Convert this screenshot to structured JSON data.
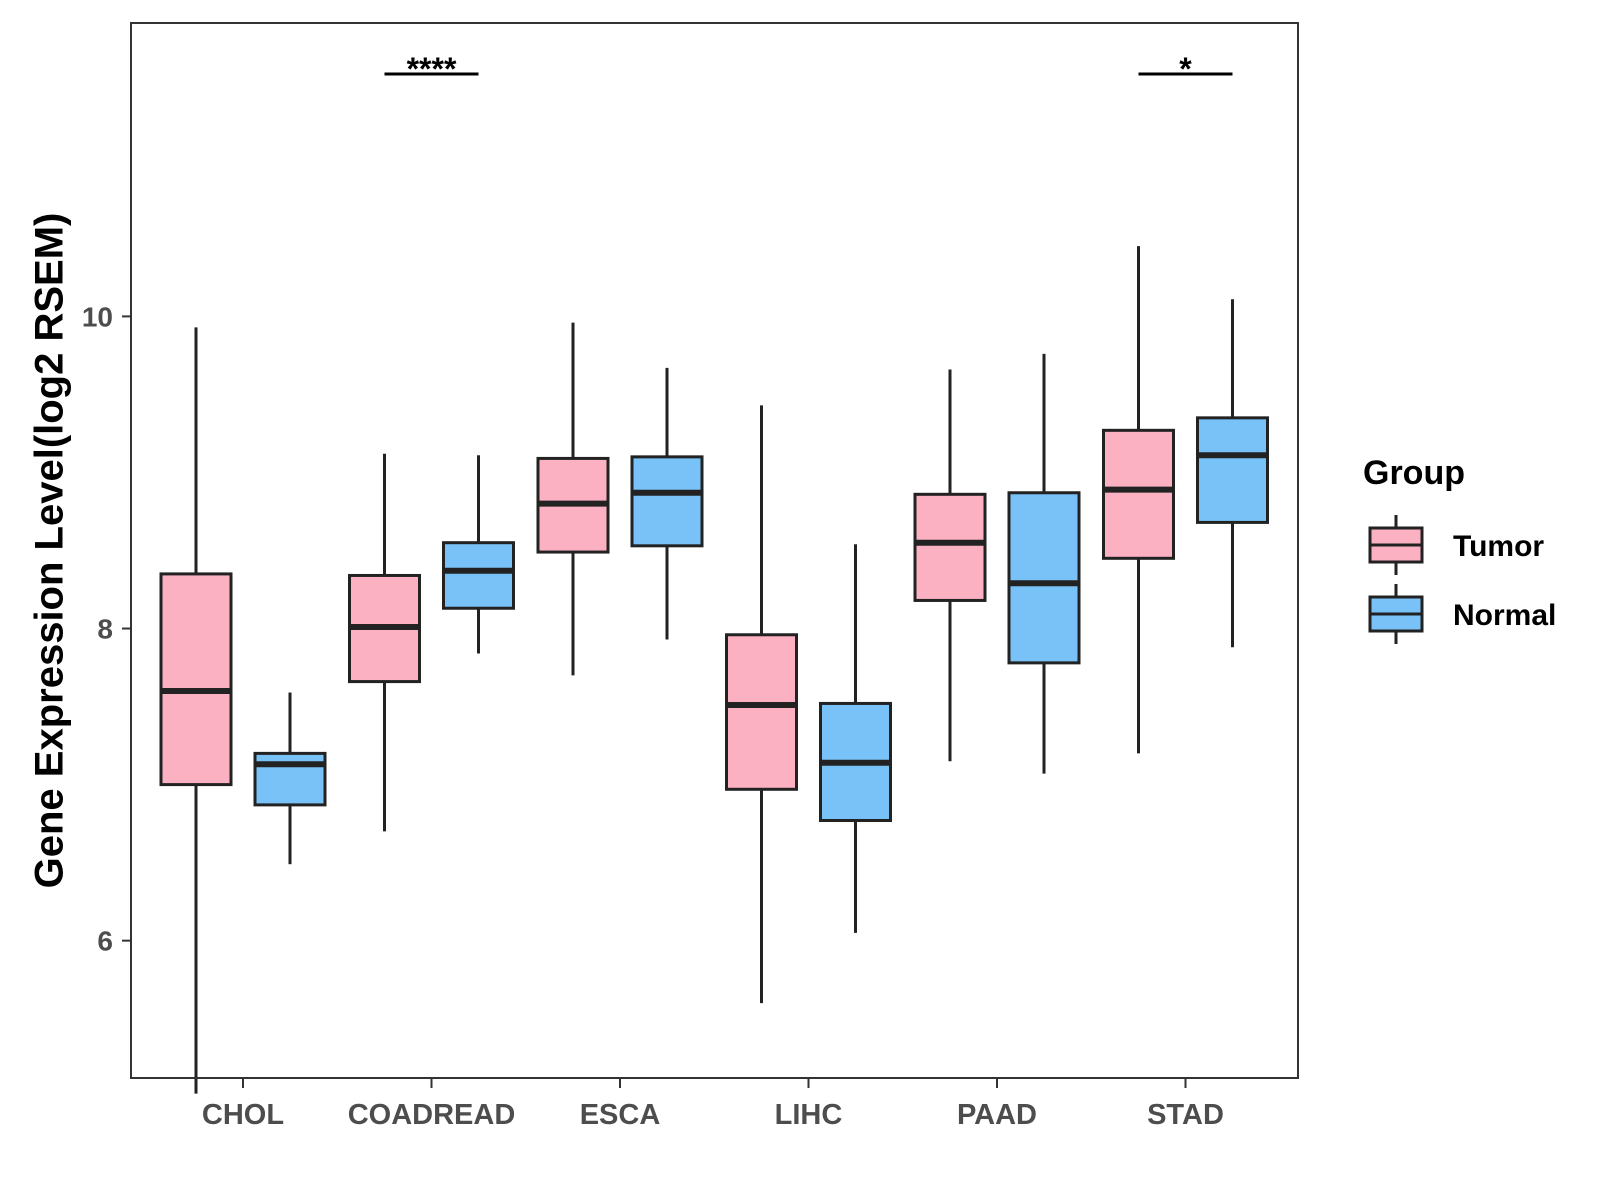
{
  "chart_data": {
    "type": "box",
    "ylabel": "Gene Expression Level(log2 RSEM)",
    "xlabel": "",
    "ylim": [
      5.12,
      11.88
    ],
    "yticks": [
      6,
      8,
      10
    ],
    "categories": [
      "CHOL",
      "COADREAD",
      "ESCA",
      "LIHC",
      "PAAD",
      "STAD"
    ],
    "series": [
      {
        "name": "Tumor",
        "color": "#fbb1c2",
        "boxes": [
          {
            "min": 5.02,
            "q1": 7.0,
            "median": 7.6,
            "q3": 8.35,
            "max": 9.93
          },
          {
            "min": 6.7,
            "q1": 7.66,
            "median": 8.01,
            "q3": 8.34,
            "max": 9.12
          },
          {
            "min": 7.7,
            "q1": 8.49,
            "median": 8.8,
            "q3": 9.09,
            "max": 9.96
          },
          {
            "min": 5.6,
            "q1": 6.97,
            "median": 7.51,
            "q3": 7.96,
            "max": 9.43
          },
          {
            "min": 7.15,
            "q1": 8.18,
            "median": 8.55,
            "q3": 8.86,
            "max": 9.66
          },
          {
            "min": 7.2,
            "q1": 8.45,
            "median": 8.89,
            "q3": 9.27,
            "max": 10.45
          }
        ]
      },
      {
        "name": "Normal",
        "color": "#78c2f8",
        "boxes": [
          {
            "min": 6.49,
            "q1": 6.87,
            "median": 7.13,
            "q3": 7.2,
            "max": 7.59
          },
          {
            "min": 7.84,
            "q1": 8.13,
            "median": 8.37,
            "q3": 8.55,
            "max": 9.11
          },
          {
            "min": 7.93,
            "q1": 8.53,
            "median": 8.87,
            "q3": 9.1,
            "max": 9.67
          },
          {
            "min": 6.05,
            "q1": 6.77,
            "median": 7.14,
            "q3": 7.52,
            "max": 8.54
          },
          {
            "min": 7.07,
            "q1": 7.78,
            "median": 8.29,
            "q3": 8.87,
            "max": 9.76
          },
          {
            "min": 7.88,
            "q1": 8.68,
            "median": 9.11,
            "q3": 9.35,
            "max": 10.11
          }
        ]
      }
    ],
    "significance": [
      {
        "category": "COADREAD",
        "label": "****"
      },
      {
        "category": "STAD",
        "label": "*"
      }
    ],
    "legend": {
      "title": "Group",
      "placement": "right",
      "entries": [
        "Tumor",
        "Normal"
      ]
    },
    "grid": false
  }
}
